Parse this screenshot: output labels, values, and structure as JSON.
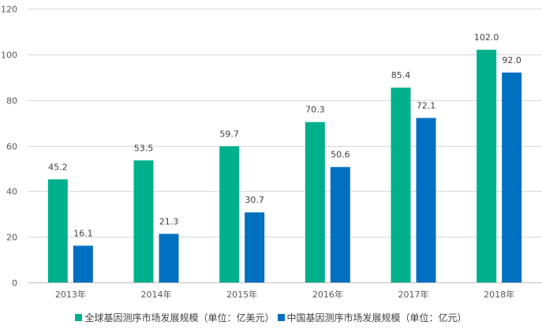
{
  "chart_data": {
    "type": "bar",
    "categories": [
      "2013年",
      "2014年",
      "2015年",
      "2016年",
      "2017年",
      "2018年"
    ],
    "series": [
      {
        "name": "全球基因测序市场发展规模（单位：亿美元）",
        "color": "#00B08C",
        "values": [
          45.2,
          53.5,
          59.7,
          70.3,
          85.4,
          102.0
        ],
        "labels": [
          "45.2",
          "53.5",
          "59.7",
          "70.3",
          "85.4",
          "102.0"
        ]
      },
      {
        "name": "中国基因测序市场发展规模（单位：亿元）",
        "color": "#0070C0",
        "values": [
          16.1,
          21.3,
          30.7,
          50.6,
          72.1,
          92.0
        ],
        "labels": [
          "16.1",
          "21.3",
          "30.7",
          "50.6",
          "72.1",
          "92.0"
        ]
      }
    ],
    "yticks": [
      "0",
      "20",
      "40",
      "60",
      "80",
      "100",
      "120"
    ],
    "ylim": [
      0,
      120
    ],
    "title": "",
    "xlabel": "",
    "ylabel": "",
    "grid": true,
    "legend": "bottom"
  }
}
